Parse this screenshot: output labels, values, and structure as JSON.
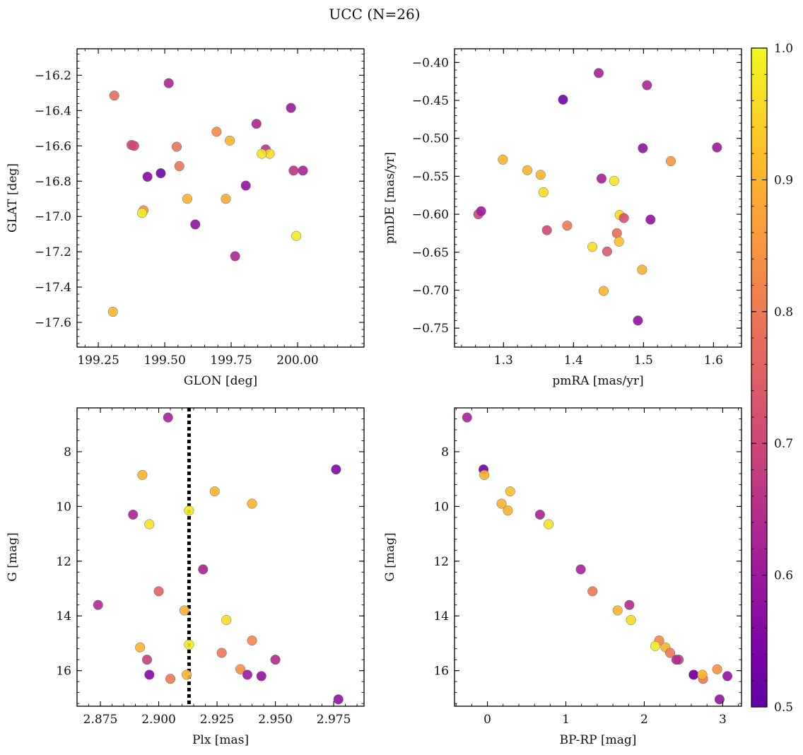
{
  "figure": {
    "title": "UCC (N=26)"
  },
  "colors": {
    "colormap": "plasma",
    "vline": "#000000"
  },
  "colorbar": {
    "range": [
      0.5,
      1.0
    ],
    "ticks": [
      0.5,
      0.6,
      0.7,
      0.8,
      0.9,
      1.0
    ],
    "tick_labels": [
      "0.5",
      "0.6",
      "0.7",
      "0.8",
      "0.9",
      "1.0"
    ]
  },
  "chart_data": [
    {
      "type": "scatter",
      "name": "glon-glat",
      "xlabel": "GLON [deg]",
      "ylabel": "GLAT [deg]",
      "xlim": [
        199.17,
        200.25
      ],
      "ylim": [
        -17.74,
        -16.05
      ],
      "yinvert": false,
      "xticks": [
        199.25,
        199.5,
        199.75,
        200.0
      ],
      "xtick_labels": [
        "199.25",
        "199.50",
        "199.75",
        "200.00"
      ],
      "yticks": [
        -16.2,
        -16.4,
        -16.6,
        -16.8,
        -17.0,
        -17.2,
        -17.4,
        -17.6
      ],
      "ytick_labels": [
        "−16.2",
        "−16.4",
        "−16.6",
        "−16.8",
        "−17.0",
        "−17.2",
        "−17.4",
        "−17.6"
      ],
      "x": [
        199.515,
        199.435,
        199.485,
        199.555,
        199.615,
        199.805,
        199.975,
        199.845,
        199.88,
        199.895,
        199.375,
        199.545,
        199.585,
        199.42,
        199.385,
        199.415,
        199.31,
        199.985,
        199.995,
        199.745,
        199.695,
        199.865,
        200.02,
        199.765,
        199.305,
        199.73
      ],
      "y": [
        -16.245,
        -16.775,
        -16.755,
        -16.715,
        -17.045,
        -16.825,
        -16.385,
        -16.475,
        -16.62,
        -16.645,
        -16.595,
        -16.605,
        -16.9,
        -16.965,
        -16.6,
        -16.98,
        -16.315,
        -16.74,
        -17.11,
        -16.57,
        -16.52,
        -16.645,
        -16.74,
        -17.225,
        -17.54,
        -16.9
      ],
      "c": [
        0.63,
        0.56,
        0.52,
        0.79,
        0.58,
        0.58,
        0.6,
        0.63,
        0.66,
        0.96,
        0.7,
        0.79,
        0.9,
        0.85,
        0.7,
        0.98,
        0.78,
        0.66,
        0.98,
        0.9,
        0.83,
        0.97,
        0.62,
        0.63,
        0.9,
        0.88
      ]
    },
    {
      "type": "scatter",
      "name": "pmra-pmde",
      "xlabel": "pmRA [mas/yr]",
      "ylabel": "pmDE [mas/yr]",
      "xlim": [
        1.23,
        1.64
      ],
      "ylim": [
        -0.775,
        -0.382
      ],
      "yinvert": false,
      "xticks": [
        1.3,
        1.4,
        1.5,
        1.6
      ],
      "xtick_labels": [
        "1.3",
        "1.4",
        "1.5",
        "1.6"
      ],
      "yticks": [
        -0.4,
        -0.45,
        -0.5,
        -0.55,
        -0.6,
        -0.65,
        -0.7,
        -0.75
      ],
      "ytick_labels": [
        "−0.40",
        "−0.45",
        "−0.50",
        "−0.55",
        "−0.60",
        "−0.65",
        "−0.70",
        "−0.75"
      ],
      "x": [
        1.436,
        1.505,
        1.385,
        1.499,
        1.605,
        1.299,
        1.539,
        1.334,
        1.353,
        1.44,
        1.458,
        1.357,
        1.264,
        1.268,
        1.466,
        1.472,
        1.362,
        1.51,
        1.391,
        1.462,
        1.465,
        1.427,
        1.448,
        1.498,
        1.443,
        1.492
      ],
      "y": [
        -0.414,
        -0.43,
        -0.449,
        -0.513,
        -0.512,
        -0.528,
        -0.53,
        -0.542,
        -0.548,
        -0.553,
        -0.556,
        -0.571,
        -0.6,
        -0.596,
        -0.601,
        -0.605,
        -0.621,
        -0.607,
        -0.615,
        -0.625,
        -0.636,
        -0.643,
        -0.649,
        -0.673,
        -0.701,
        -0.74
      ],
      "c": [
        0.62,
        0.63,
        0.52,
        0.58,
        0.6,
        0.9,
        0.85,
        0.9,
        0.9,
        0.62,
        0.97,
        0.96,
        0.7,
        0.6,
        0.96,
        0.72,
        0.7,
        0.58,
        0.8,
        0.78,
        0.92,
        0.96,
        0.74,
        0.9,
        0.9,
        0.58
      ]
    },
    {
      "type": "scatter",
      "name": "plx-g",
      "xlabel": "Plx [mas]",
      "ylabel": "G [mag]",
      "xlim": [
        2.865,
        2.988
      ],
      "ylim": [
        6.4,
        17.3
      ],
      "yinvert": true,
      "xticks": [
        2.875,
        2.9,
        2.925,
        2.95,
        2.975
      ],
      "xtick_labels": [
        "2.875",
        "2.900",
        "2.925",
        "2.950",
        "2.975"
      ],
      "yticks": [
        8,
        10,
        12,
        14,
        16
      ],
      "ytick_labels": [
        "8",
        "10",
        "12",
        "14",
        "16"
      ],
      "vline_x": 2.913,
      "x": [
        2.904,
        2.976,
        2.893,
        2.924,
        2.913,
        2.94,
        2.889,
        2.896,
        2.919,
        2.9,
        2.874,
        2.911,
        2.929,
        2.94,
        2.892,
        2.913,
        2.927,
        2.95,
        2.935,
        2.895,
        2.938,
        2.896,
        2.912,
        2.944,
        2.905,
        2.977
      ],
      "y": [
        6.75,
        8.65,
        8.85,
        9.45,
        10.15,
        9.9,
        10.3,
        10.65,
        12.3,
        13.1,
        13.6,
        13.8,
        14.15,
        14.9,
        15.15,
        15.05,
        15.35,
        15.6,
        15.95,
        15.6,
        16.15,
        16.15,
        16.15,
        16.2,
        16.3,
        17.05
      ],
      "c": [
        0.62,
        0.55,
        0.9,
        0.9,
        0.98,
        0.9,
        0.62,
        0.97,
        0.62,
        0.76,
        0.64,
        0.9,
        0.96,
        0.82,
        0.9,
        0.98,
        0.8,
        0.64,
        0.84,
        0.68,
        0.6,
        0.56,
        0.9,
        0.58,
        0.8,
        0.58
      ]
    },
    {
      "type": "scatter",
      "name": "bprp-g",
      "xlabel": "BP-RP [mag]",
      "ylabel": "G [mag]",
      "xlim": [
        -0.42,
        3.24
      ],
      "ylim": [
        6.4,
        17.3
      ],
      "yinvert": true,
      "xticks": [
        0,
        1,
        2,
        3
      ],
      "xtick_labels": [
        "0",
        "1",
        "2",
        "3"
      ],
      "yticks": [
        8,
        10,
        12,
        14,
        16
      ],
      "ytick_labels": [
        "8",
        "10",
        "12",
        "14",
        "16"
      ],
      "x": [
        -0.26,
        -0.05,
        -0.04,
        0.29,
        0.18,
        0.26,
        0.67,
        0.78,
        1.19,
        1.34,
        1.81,
        1.66,
        1.83,
        2.19,
        2.14,
        2.27,
        2.33,
        2.44,
        2.41,
        2.63,
        2.63,
        2.75,
        2.74,
        2.93,
        3.06,
        2.96
      ],
      "y": [
        6.75,
        8.65,
        8.85,
        9.45,
        9.9,
        10.15,
        10.3,
        10.65,
        12.3,
        13.1,
        13.6,
        13.8,
        14.15,
        14.9,
        15.1,
        15.15,
        15.35,
        15.6,
        15.6,
        16.15,
        16.15,
        16.3,
        16.15,
        15.95,
        16.2,
        17.05
      ],
      "c": [
        0.62,
        0.52,
        0.9,
        0.92,
        0.9,
        0.9,
        0.62,
        0.97,
        0.62,
        0.8,
        0.64,
        0.9,
        0.96,
        0.82,
        0.98,
        0.9,
        0.8,
        0.7,
        0.64,
        0.58,
        0.55,
        0.8,
        0.9,
        0.84,
        0.58,
        0.58
      ]
    }
  ]
}
